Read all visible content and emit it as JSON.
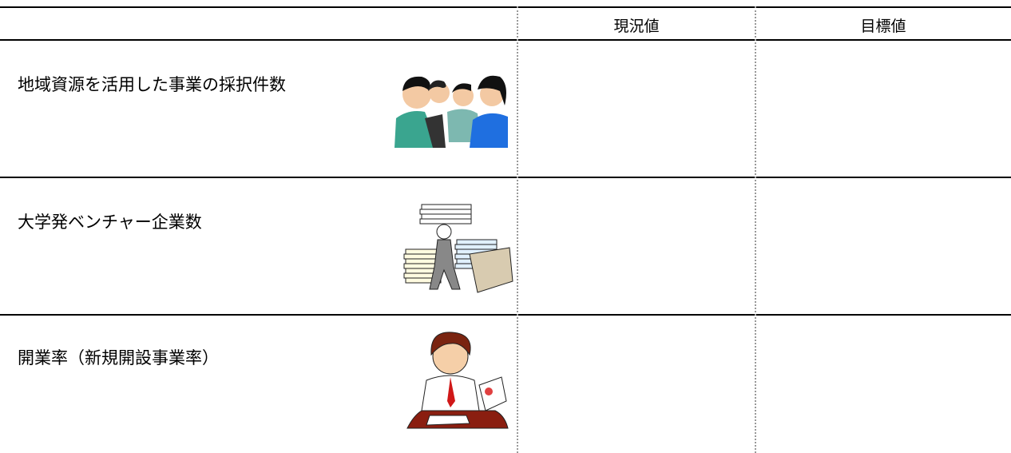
{
  "table": {
    "columns": [
      "現況値",
      "目標値"
    ],
    "rows": [
      "地域資源を活用した事業の採択件数",
      "大学発ベンチャー企業数",
      "開業率（新規開設事業率）"
    ]
  }
}
